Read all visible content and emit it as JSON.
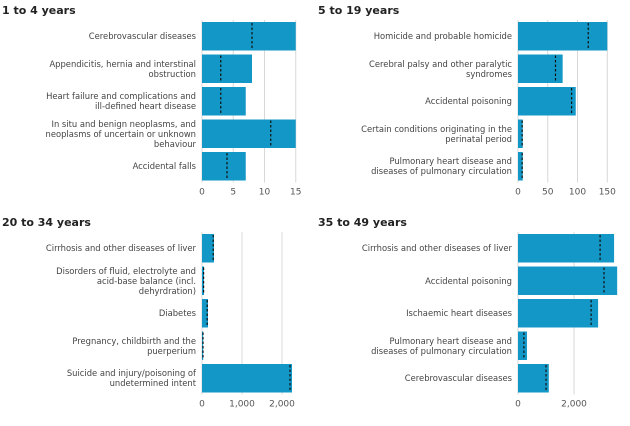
{
  "chart_data": [
    {
      "type": "bar",
      "orientation": "horizontal",
      "title": "1 to 4 years",
      "categories": [
        "Cerebrovascular diseases",
        "Appendicitis, hernia and interstinal\nobstruction",
        "Heart failure and complications and\nill-defined heart disease",
        "In situ and benign neoplasms, and\nneoplasms of uncertain or unknown\nbehaviour",
        "Accidental falls"
      ],
      "values": [
        15,
        8,
        7,
        15,
        7
      ],
      "comparison_values": [
        8,
        3,
        3,
        11,
        4
      ],
      "color": "#1297c6",
      "comparison_color": "#111111",
      "xlim": [
        0,
        16
      ],
      "xticks": [
        0,
        5,
        10,
        15
      ],
      "grid": true
    },
    {
      "type": "bar",
      "orientation": "horizontal",
      "title": "5 to 19 years",
      "categories": [
        "Homicide and probable homicide",
        "Cerebral palsy and other paralytic\nsyndromes",
        "Accidental poisoning",
        "Certain conditions originating in the\nperinatal period",
        "Pulmonary heart disease and\ndiseases of pulmonary circulation"
      ],
      "values": [
        150,
        75,
        97,
        8,
        8
      ],
      "comparison_values": [
        118,
        63,
        90,
        7,
        7
      ],
      "color": "#1297c6",
      "comparison_color": "#111111",
      "xlim": [
        0,
        168
      ],
      "xticks": [
        0,
        50,
        100,
        150
      ],
      "grid": true
    },
    {
      "type": "bar",
      "orientation": "horizontal",
      "title": "20 to 34 years",
      "categories": [
        "Cirrhosis and other diseases of liver",
        "Disorders of fluid, electrolyte and\nacid-base balance (incl.\ndehyrdration)",
        "Diabetes",
        "Pregnancy, childbirth and the\npuerperium",
        "Suicide and injury/poisoning of\nundetermined intent"
      ],
      "values": [
        300,
        50,
        150,
        30,
        2250
      ],
      "comparison_values": [
        280,
        40,
        130,
        25,
        2200
      ],
      "color": "#1297c6",
      "comparison_color": "#111111",
      "xlim": [
        0,
        2500
      ],
      "xticks": [
        0,
        {
          "value": 1000,
          "label": "1,000"
        },
        {
          "value": 2000,
          "label": "2,000"
        }
      ],
      "grid": true
    },
    {
      "type": "bar",
      "orientation": "horizontal",
      "title": "35 to 49 years",
      "categories": [
        "Cirrhosis and other diseases of liver",
        "Accidental poisoning",
        "Ischaemic heart diseases",
        "Pulmonary heart disease and\ndiseases of pulmonary circulation",
        "Cerebrovascular diseases"
      ],
      "values": [
        3430,
        3540,
        2860,
        320,
        1100
      ],
      "comparison_values": [
        2930,
        3070,
        2610,
        210,
        1000
      ],
      "color": "#1297c6",
      "comparison_color": "#111111",
      "xlim": [
        0,
        3570
      ],
      "xticks": [
        0,
        {
          "value": 2000,
          "label": "2,000"
        }
      ],
      "grid": true
    }
  ]
}
